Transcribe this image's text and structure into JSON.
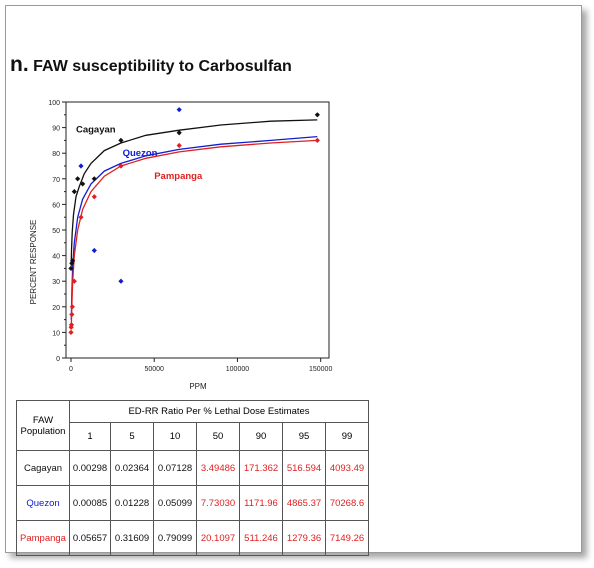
{
  "title": {
    "prefix": "n.",
    "text": "FAW susceptibility to Carbosulfan"
  },
  "chart_data": {
    "type": "scatter",
    "xlabel": "PPM",
    "ylabel": "PERCENT RESPONSE",
    "xlim": [
      -3000,
      155000
    ],
    "ylim": [
      0,
      100
    ],
    "xticks": [
      0,
      50000,
      100000,
      150000
    ],
    "xtick_labels": [
      "0",
      "50000",
      "100000",
      "150000"
    ],
    "yticks": [
      0,
      10,
      20,
      30,
      40,
      50,
      60,
      70,
      80,
      90,
      100
    ],
    "ytick_labels": [
      "0",
      "10",
      "20",
      "30",
      "40",
      "50",
      "60",
      "70",
      "80",
      "90",
      "100"
    ],
    "grid": false,
    "series": [
      {
        "name": "Cagayan",
        "color": "#111111",
        "points": [
          [
            0,
            35
          ],
          [
            500,
            37
          ],
          [
            1000,
            38
          ],
          [
            2000,
            65
          ],
          [
            4000,
            70
          ],
          [
            7000,
            68
          ],
          [
            14000,
            70
          ],
          [
            30000,
            85
          ],
          [
            65000,
            88
          ],
          [
            148000,
            95
          ]
        ],
        "curve": [
          [
            100,
            36
          ],
          [
            300,
            42
          ],
          [
            700,
            49
          ],
          [
            1500,
            56
          ],
          [
            3000,
            63
          ],
          [
            5000,
            67
          ],
          [
            8000,
            72
          ],
          [
            12000,
            76
          ],
          [
            20000,
            81
          ],
          [
            30000,
            84
          ],
          [
            45000,
            87
          ],
          [
            65000,
            89
          ],
          [
            90000,
            91
          ],
          [
            120000,
            92.5
          ],
          [
            148000,
            93
          ]
        ]
      },
      {
        "name": "Quezon",
        "color": "#1020d0",
        "points": [
          [
            6000,
            75
          ],
          [
            14000,
            42
          ],
          [
            30000,
            30
          ],
          [
            65000,
            97
          ]
        ],
        "curve": [
          [
            200,
            15
          ],
          [
            500,
            25
          ],
          [
            1000,
            36
          ],
          [
            2000,
            45
          ],
          [
            4000,
            55
          ],
          [
            7000,
            62
          ],
          [
            12000,
            68
          ],
          [
            20000,
            73
          ],
          [
            30000,
            76
          ],
          [
            45000,
            79
          ],
          [
            65000,
            81.5
          ],
          [
            90000,
            83.5
          ],
          [
            120000,
            85
          ],
          [
            148000,
            86.5
          ]
        ]
      },
      {
        "name": "Pampanga",
        "color": "#e02020",
        "points": [
          [
            0,
            10
          ],
          [
            100,
            12
          ],
          [
            300,
            13
          ],
          [
            500,
            17
          ],
          [
            800,
            20
          ],
          [
            2000,
            30
          ],
          [
            6000,
            55
          ],
          [
            14000,
            63
          ],
          [
            30000,
            75
          ],
          [
            65000,
            83
          ],
          [
            148000,
            85
          ]
        ],
        "curve": [
          [
            200,
            12
          ],
          [
            500,
            20
          ],
          [
            1000,
            30
          ],
          [
            2000,
            40
          ],
          [
            4000,
            50
          ],
          [
            7000,
            58
          ],
          [
            12000,
            65
          ],
          [
            20000,
            71
          ],
          [
            30000,
            75
          ],
          [
            45000,
            78
          ],
          [
            65000,
            80.5
          ],
          [
            90000,
            82.5
          ],
          [
            120000,
            84
          ],
          [
            148000,
            85
          ]
        ]
      }
    ],
    "annotations": [
      {
        "text": "Cagayan",
        "x": 3000,
        "y": 88,
        "color": "#111111"
      },
      {
        "text": "Quezon",
        "x": 31000,
        "y": 79,
        "color": "#1020d0"
      },
      {
        "text": "Pampanga",
        "x": 50000,
        "y": 70,
        "color": "#e02020"
      }
    ]
  },
  "table": {
    "head_population": "FAW Population",
    "head_group": "ED-RR Ratio Per % Lethal Dose Estimates",
    "columns": [
      "1",
      "5",
      "10",
      "50",
      "90",
      "95",
      "99"
    ],
    "rows": [
      {
        "population": "Cagayan",
        "values": [
          "0.00298",
          "0.02364",
          "0.07128",
          "3.49486",
          "171.362",
          "516.594",
          "4093.49"
        ]
      },
      {
        "population": "Quezon",
        "values": [
          "0.00085",
          "0.01228",
          "0.05099",
          "7.73030",
          "1171.96",
          "4865.37",
          "70268.6"
        ]
      },
      {
        "population": "Pampanga",
        "values": [
          "0.05657",
          "0.31609",
          "0.79099",
          "20.1097",
          "511.246",
          "1279.36",
          "7149.26"
        ]
      }
    ]
  }
}
